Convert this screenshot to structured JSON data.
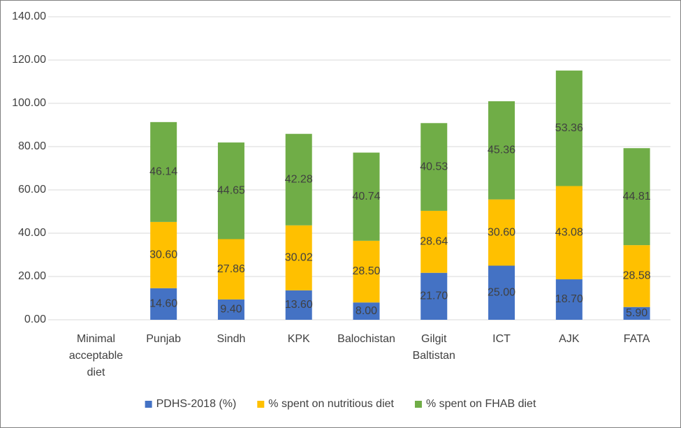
{
  "chart_data": {
    "type": "stacked_bar",
    "categories": [
      "Minimal acceptable diet",
      "Punjab",
      "Sindh",
      "KPK",
      "Balochistan",
      "Gilgit Baltistan",
      "ICT",
      "AJK",
      "FATA"
    ],
    "series": [
      {
        "name": "PDHS-2018 (%)",
        "color": "#4472c4",
        "values": [
          null,
          14.6,
          9.4,
          13.6,
          8.0,
          21.7,
          25.0,
          18.7,
          5.9
        ],
        "value_labels": [
          null,
          "14.60",
          "9.40",
          "13.60",
          "8.00",
          "21.70",
          "25.00",
          "18.70",
          "5.90"
        ]
      },
      {
        "name": "% spent on nutritious diet",
        "color": "#ffc000",
        "values": [
          null,
          30.6,
          27.86,
          30.02,
          28.5,
          28.64,
          30.6,
          43.08,
          28.58
        ],
        "value_labels": [
          null,
          "30.60",
          "27.86",
          "30.02",
          "28.50",
          "28.64",
          "30.60",
          "43.08",
          "28.58"
        ]
      },
      {
        "name": "% spent on FHAB diet",
        "color": "#70ad47",
        "values": [
          null,
          46.14,
          44.65,
          42.28,
          40.74,
          40.53,
          45.36,
          53.36,
          44.81
        ],
        "value_labels": [
          null,
          "46.14",
          "44.65",
          "42.28",
          "40.74",
          "40.53",
          "45.36",
          "53.36",
          "44.81"
        ]
      }
    ],
    "ylim": [
      0,
      140
    ],
    "yticks": [
      {
        "value": 0,
        "label": "0.00"
      },
      {
        "value": 20,
        "label": "20.00"
      },
      {
        "value": 40,
        "label": "40.00"
      },
      {
        "value": 60,
        "label": "60.00"
      },
      {
        "value": 80,
        "label": "80.00"
      },
      {
        "value": 100,
        "label": "100.00"
      },
      {
        "value": 120,
        "label": "120.00"
      },
      {
        "value": 140,
        "label": "140.00"
      }
    ],
    "grid": true,
    "legend": "bottom"
  }
}
